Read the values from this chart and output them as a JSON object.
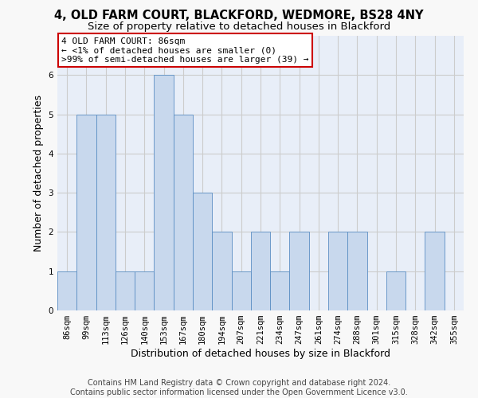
{
  "title1": "4, OLD FARM COURT, BLACKFORD, WEDMORE, BS28 4NY",
  "title2": "Size of property relative to detached houses in Blackford",
  "xlabel": "Distribution of detached houses by size in Blackford",
  "ylabel": "Number of detached properties",
  "bin_labels": [
    "86sqm",
    "99sqm",
    "113sqm",
    "126sqm",
    "140sqm",
    "153sqm",
    "167sqm",
    "180sqm",
    "194sqm",
    "207sqm",
    "221sqm",
    "234sqm",
    "247sqm",
    "261sqm",
    "274sqm",
    "288sqm",
    "301sqm",
    "315sqm",
    "328sqm",
    "342sqm",
    "355sqm"
  ],
  "bar_heights": [
    1,
    5,
    5,
    1,
    1,
    6,
    5,
    3,
    2,
    1,
    2,
    1,
    2,
    0,
    2,
    2,
    0,
    1,
    0,
    2,
    0
  ],
  "bar_color": "#c8d8ed",
  "bar_edge_color": "#5b8ec4",
  "annotation_line1": "4 OLD FARM COURT: 86sqm",
  "annotation_line2": "← <1% of detached houses are smaller (0)",
  "annotation_line3": ">99% of semi-detached houses are larger (39) →",
  "annotation_box_facecolor": "#ffffff",
  "annotation_box_edgecolor": "#cc0000",
  "ylim_max": 7,
  "yticks": [
    0,
    1,
    2,
    3,
    4,
    5,
    6
  ],
  "grid_color": "#cccccc",
  "ax_facecolor": "#e8eef8",
  "fig_facecolor": "#f8f8f8",
  "title1_fontsize": 10.5,
  "title2_fontsize": 9.5,
  "xlabel_fontsize": 9,
  "ylabel_fontsize": 9,
  "tick_fontsize": 7.5,
  "annot_fontsize": 8,
  "footer_fontsize": 7,
  "footer_line1": "Contains HM Land Registry data © Crown copyright and database right 2024.",
  "footer_line2": "Contains public sector information licensed under the Open Government Licence v3.0."
}
